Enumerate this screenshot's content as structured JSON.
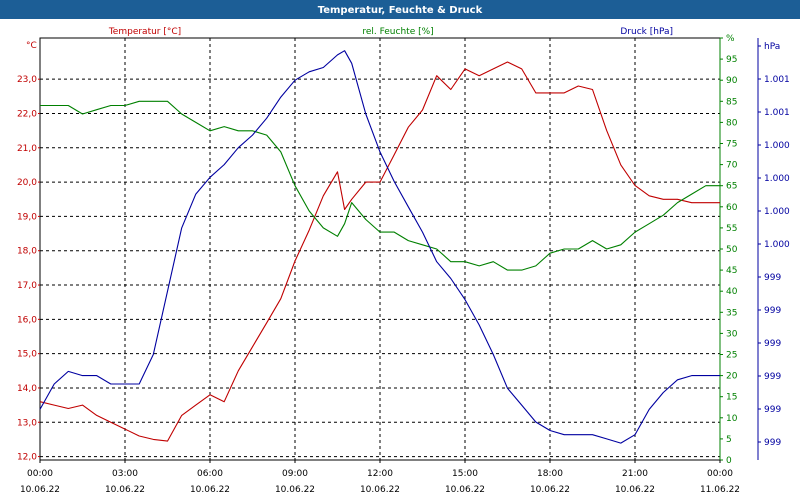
{
  "window": {
    "title": "Temperatur, Feuchte & Druck",
    "title_bg": "#1c5e96"
  },
  "chart_data": {
    "type": "line",
    "title": "Temperatur, Feuchte & Druck",
    "x_range": [
      0,
      24
    ],
    "x_ticks": [
      {
        "time": "00:00",
        "date": "10.06.22"
      },
      {
        "time": "03:00",
        "date": "10.06.22"
      },
      {
        "time": "06:00",
        "date": "10.06.22"
      },
      {
        "time": "09:00",
        "date": "10.06.22"
      },
      {
        "time": "12:00",
        "date": "10.06.22"
      },
      {
        "time": "15:00",
        "date": "10.06.22"
      },
      {
        "time": "18:00",
        "date": "10.06.22"
      },
      {
        "time": "21:00",
        "date": "10.06.22"
      },
      {
        "time": "00:00",
        "date": "11.06.22"
      }
    ],
    "grid": true,
    "axes": {
      "temperature": {
        "label": "Temperatur [°C]",
        "unit": "°C",
        "color": "#c00000",
        "range": [
          11.9,
          24.2
        ],
        "tick_labels": [
          "12,0",
          "13,0",
          "14,0",
          "15,0",
          "16,0",
          "17,0",
          "18,0",
          "19,0",
          "20,0",
          "21,0",
          "22,0",
          "23,0"
        ]
      },
      "humidity": {
        "label": "rel. Feuchte [%]",
        "unit": "%",
        "color": "#008000",
        "range": [
          0,
          100
        ],
        "tick_labels": [
          "0",
          "5",
          "10",
          "15",
          "20",
          "25",
          "30",
          "35",
          "40",
          "45",
          "50",
          "55",
          "60",
          "65",
          "70",
          "75",
          "80",
          "85",
          "90",
          "95",
          "%"
        ]
      },
      "pressure": {
        "label": "Druck [hPa]",
        "unit": "hPa",
        "color": "#0000a0",
        "tick_labels": [
          "999",
          "999",
          "999",
          "999",
          "999",
          "999",
          "1.000",
          "1.000",
          "1.000",
          "1.000",
          "1.001",
          "1.001",
          "hPa"
        ]
      }
    },
    "series": [
      {
        "name": "Temperatur [°C]",
        "axis": "temperature",
        "color": "#c00000",
        "x": [
          0,
          0.5,
          1,
          1.5,
          2,
          2.5,
          3,
          3.5,
          4,
          4.5,
          5,
          5.5,
          6,
          6.5,
          7,
          7.5,
          8,
          8.5,
          9,
          9.5,
          10,
          10.5,
          10.75,
          11,
          11.5,
          12,
          12.5,
          13,
          13.5,
          14,
          14.5,
          15,
          15.5,
          16,
          16.5,
          17,
          17.5,
          18,
          18.5,
          19,
          19.5,
          20,
          20.5,
          21,
          21.5,
          22,
          22.5,
          23,
          23.5,
          24
        ],
        "y": [
          13.6,
          13.5,
          13.4,
          13.5,
          13.2,
          13.0,
          12.8,
          12.6,
          12.5,
          12.45,
          13.2,
          13.5,
          13.8,
          13.6,
          14.5,
          15.2,
          15.9,
          16.6,
          17.7,
          18.6,
          19.6,
          20.3,
          19.2,
          19.5,
          20.0,
          20.0,
          20.8,
          21.6,
          22.1,
          23.1,
          22.7,
          23.3,
          23.1,
          23.3,
          23.5,
          23.3,
          22.6,
          22.6,
          22.6,
          22.8,
          22.7,
          21.5,
          20.5,
          19.9,
          19.6,
          19.5,
          19.5,
          19.4,
          19.4,
          19.4
        ]
      },
      {
        "name": "rel. Feuchte [%]",
        "axis": "humidity",
        "color": "#008000",
        "x": [
          0,
          0.5,
          1,
          1.5,
          2,
          2.5,
          3,
          3.5,
          4,
          4.5,
          5,
          5.5,
          6,
          6.5,
          7,
          7.5,
          8,
          8.5,
          9,
          9.5,
          10,
          10.5,
          10.75,
          11,
          11.5,
          12,
          12.5,
          13,
          13.5,
          14,
          14.5,
          15,
          15.5,
          16,
          16.5,
          17,
          17.5,
          18,
          18.5,
          19,
          19.5,
          20,
          20.5,
          21,
          21.5,
          22,
          22.5,
          23,
          23.5,
          24
        ],
        "y": [
          84,
          84,
          84,
          82,
          83,
          84,
          84,
          85,
          85,
          85,
          82,
          80,
          78,
          79,
          78,
          78,
          77,
          73,
          65,
          59,
          55,
          53,
          56,
          61,
          57,
          54,
          54,
          52,
          51,
          50,
          47,
          47,
          46,
          47,
          45,
          45,
          46,
          49,
          50,
          50,
          52,
          50,
          51,
          54,
          56,
          58,
          61,
          63,
          65,
          65
        ]
      },
      {
        "name": "Druck [hPa]",
        "axis": "pressure",
        "color": "#0000a0",
        "x": [
          0,
          0.5,
          1,
          1.5,
          2,
          2.5,
          3,
          3.5,
          4,
          4.5,
          5,
          5.5,
          6,
          6.5,
          7,
          7.5,
          8,
          8.5,
          9,
          9.5,
          10,
          10.5,
          10.75,
          11,
          11.5,
          12,
          12.5,
          13,
          13.5,
          14,
          14.5,
          15,
          15.5,
          16,
          16.5,
          17,
          17.5,
          18,
          18.5,
          19,
          19.5,
          20,
          20.5,
          21,
          21.5,
          22,
          22.5,
          23,
          23.5,
          24
        ],
        "y": [
          12,
          18,
          21,
          20,
          20,
          18,
          18,
          18,
          25,
          40,
          55,
          63,
          67,
          70,
          74,
          77,
          81,
          86,
          90,
          92,
          93,
          96,
          97,
          94,
          82,
          73,
          66,
          60,
          54,
          47,
          43,
          38,
          32,
          25,
          17,
          13,
          9,
          7,
          6,
          6,
          6,
          5,
          4,
          6,
          12,
          16,
          19,
          20,
          20,
          20
        ]
      }
    ]
  }
}
